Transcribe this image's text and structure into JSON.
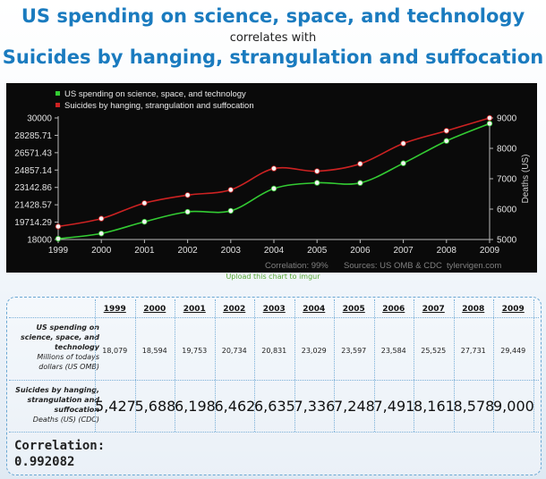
{
  "header": {
    "title_1": "US spending on science, space, and technology",
    "connector": "correlates with",
    "title_2": "Suicides by hanging, strangulation and suffocation"
  },
  "chart_data": {
    "type": "line",
    "x": [
      1999,
      2000,
      2001,
      2002,
      2003,
      2004,
      2005,
      2006,
      2007,
      2008,
      2009
    ],
    "series": [
      {
        "name": "US spending on science, space, and technology",
        "axis": "left",
        "color": "#33cc33",
        "values": [
          18079,
          18594,
          19753,
          20734,
          20831,
          23029,
          23597,
          23584,
          25525,
          27731,
          29449
        ]
      },
      {
        "name": "Suicides by hanging, strangulation and suffocation",
        "axis": "right",
        "color": "#cc2222",
        "values": [
          5427,
          5688,
          6198,
          6462,
          6635,
          7336,
          7248,
          7491,
          8161,
          8578,
          9000
        ]
      }
    ],
    "y_left": {
      "range": [
        18000,
        30000
      ],
      "ticks": [
        "30000",
        "28285.71",
        "26571.43",
        "24857.14",
        "23142.86",
        "21428.57",
        "19714.29",
        "18000"
      ]
    },
    "y_right": {
      "label": "Deaths (US)",
      "range": [
        5000,
        9000
      ],
      "ticks": [
        "9000",
        "8000",
        "7000",
        "6000",
        "5000"
      ]
    },
    "x_ticks": [
      "1999",
      "2000",
      "2001",
      "2002",
      "2003",
      "2004",
      "2005",
      "2006",
      "2007",
      "2008",
      "2009"
    ],
    "legend_position": "top-left",
    "grid": false,
    "correlation_note": "Correlation: 99%",
    "source_note": "Sources: US OMB & CDC",
    "credit": "tylervigen.com"
  },
  "upload_link": "Upload this chart to imgur",
  "table": {
    "years": [
      "1999",
      "2000",
      "2001",
      "2002",
      "2003",
      "2004",
      "2005",
      "2006",
      "2007",
      "2008",
      "2009"
    ],
    "row1": {
      "label": "US spending on science, space, and technology",
      "unit": "Millions of todays dollars (US OMB)",
      "values": [
        "18,079",
        "18,594",
        "19,753",
        "20,734",
        "20,831",
        "23,029",
        "23,597",
        "23,584",
        "25,525",
        "27,731",
        "29,449"
      ]
    },
    "row2": {
      "label": "Suicides by hanging, strangulation and suffocation",
      "unit": "Deaths (US) (CDC)",
      "values": [
        "5,427",
        "5,688",
        "6,198",
        "6,462",
        "6,635",
        "7,336",
        "7,248",
        "7,491",
        "8,161",
        "8,578",
        "9,000"
      ]
    },
    "correlation_label": "Correlation:",
    "correlation_value": "0.992082"
  }
}
